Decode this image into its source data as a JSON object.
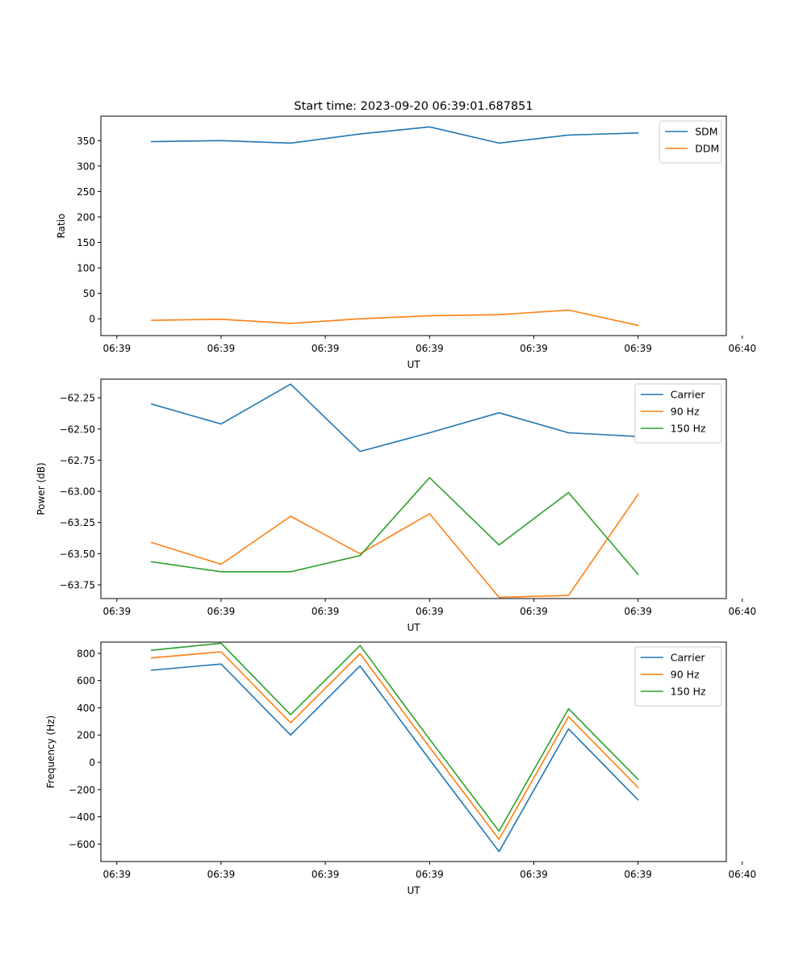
{
  "title": "Start time: 2023-09-20 06:39:01.687851",
  "chart_data": [
    {
      "type": "line",
      "ylabel": "Ratio",
      "xlabel": "UT",
      "x": [
        1,
        2,
        3,
        4,
        5,
        6,
        7,
        8
      ],
      "xlim": [
        0.27,
        9.27
      ],
      "xticks": [
        0.5,
        2,
        3.5,
        5,
        6.5,
        8,
        9.5
      ],
      "xtick_labels": [
        "06:39",
        "06:39",
        "06:39",
        "06:39",
        "06:39",
        "06:39",
        "06:40"
      ],
      "ylim": [
        -33,
        398
      ],
      "yticks": [
        0,
        50,
        100,
        150,
        200,
        250,
        300,
        350
      ],
      "ytick_labels": [
        "0",
        "50",
        "100",
        "150",
        "200",
        "250",
        "300",
        "350"
      ],
      "legend": "top-right",
      "series": [
        {
          "name": "SDM",
          "color": "#1f77b4",
          "values": [
            348,
            350,
            345,
            363,
            377,
            345,
            361,
            365
          ]
        },
        {
          "name": "DDM",
          "color": "#ff7f0e",
          "values": [
            -3,
            -1,
            -9,
            0,
            6,
            8,
            17,
            -13
          ]
        }
      ]
    },
    {
      "type": "line",
      "ylabel": "Power (dB)",
      "xlabel": "UT",
      "x": [
        1,
        2,
        3,
        4,
        5,
        6,
        7,
        8
      ],
      "xlim": [
        0.27,
        9.27
      ],
      "xticks": [
        0.5,
        2,
        3.5,
        5,
        6.5,
        8,
        9.5
      ],
      "xtick_labels": [
        "06:39",
        "06:39",
        "06:39",
        "06:39",
        "06:39",
        "06:39",
        "06:40"
      ],
      "ylim": [
        -63.86,
        -62.1
      ],
      "yticks": [
        -63.75,
        -63.5,
        -63.25,
        -63.0,
        -62.75,
        -62.5,
        -62.25
      ],
      "ytick_labels": [
        "−63.75",
        "−63.50",
        "−63.25",
        "−63.00",
        "−62.75",
        "−62.50",
        "−62.25"
      ],
      "legend": "top-right",
      "series": [
        {
          "name": "Carrier",
          "color": "#1f77b4",
          "values": [
            -62.3,
            -62.46,
            -62.14,
            -62.68,
            -62.53,
            -62.37,
            -62.53,
            -62.56
          ]
        },
        {
          "name": "90 Hz",
          "color": "#ff7f0e",
          "values": [
            -63.41,
            -63.585,
            -63.2,
            -63.5,
            -63.18,
            -63.85,
            -63.835,
            -63.025
          ]
        },
        {
          "name": "150 Hz",
          "color": "#2ca02c",
          "values": [
            -63.565,
            -63.645,
            -63.645,
            -63.515,
            -62.89,
            -63.43,
            -63.01,
            -63.665
          ]
        }
      ]
    },
    {
      "type": "line",
      "ylabel": "Frequency (Hz)",
      "xlabel": "UT",
      "x": [
        1,
        2,
        3,
        4,
        5,
        6,
        7,
        8
      ],
      "xlim": [
        0.27,
        9.27
      ],
      "xticks": [
        0.5,
        2,
        3.5,
        5,
        6.5,
        8,
        9.5
      ],
      "xtick_labels": [
        "06:39",
        "06:39",
        "06:39",
        "06:39",
        "06:39",
        "06:39",
        "06:40"
      ],
      "ylim": [
        -728,
        882
      ],
      "yticks": [
        -600,
        -400,
        -200,
        0,
        200,
        400,
        600,
        800
      ],
      "ytick_labels": [
        "−600",
        "−400",
        "−200",
        "0",
        "200",
        "400",
        "600",
        "800"
      ],
      "legend": "top-right",
      "series": [
        {
          "name": "Carrier",
          "color": "#1f77b4",
          "values": [
            676,
            721,
            200,
            707,
            20,
            -655,
            245,
            -275
          ]
        },
        {
          "name": "90 Hz",
          "color": "#ff7f0e",
          "values": [
            766,
            811,
            290,
            797,
            110,
            -565,
            335,
            -185
          ]
        },
        {
          "name": "150 Hz",
          "color": "#2ca02c",
          "values": [
            822,
            874,
            350,
            857,
            170,
            -505,
            393,
            -125
          ]
        }
      ]
    }
  ]
}
